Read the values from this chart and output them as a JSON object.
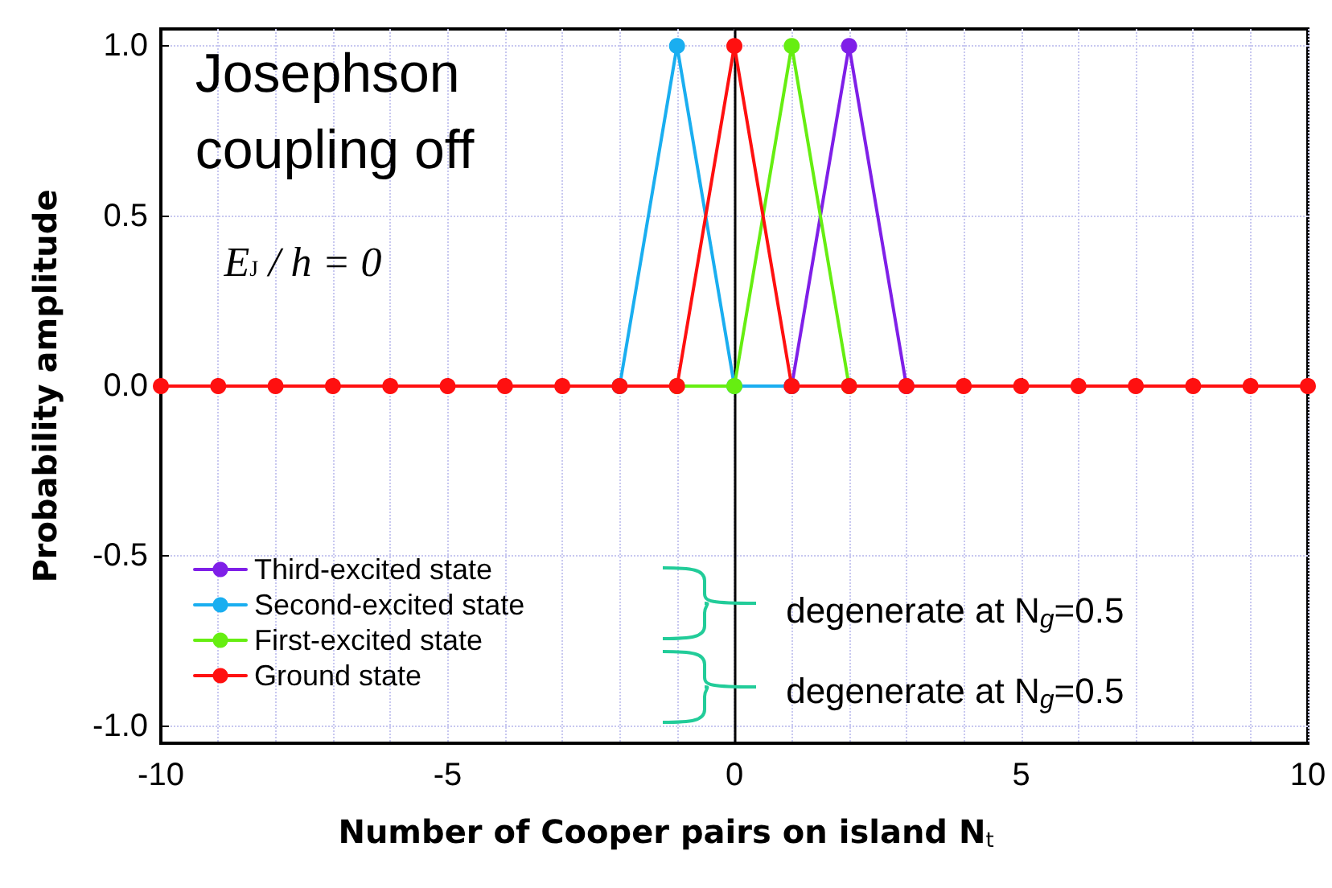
{
  "chart_data": {
    "type": "line",
    "xlabel": "Number of Cooper pairs on island N$_{t}$",
    "ylabel": "Probability amplitude",
    "x": [
      -10,
      -9,
      -8,
      -7,
      -6,
      -5,
      -4,
      -3,
      -2,
      -1,
      0,
      1,
      2,
      3,
      4,
      5,
      6,
      7,
      8,
      9,
      10
    ],
    "series": [
      {
        "name": "Third-excited state",
        "color": "#7f1fe8",
        "values": [
          null,
          null,
          null,
          null,
          null,
          null,
          null,
          null,
          null,
          null,
          null,
          0,
          1,
          0,
          null,
          null,
          null,
          null,
          null,
          null,
          null
        ]
      },
      {
        "name": "Second-excited state",
        "color": "#1aaef0",
        "values": [
          null,
          null,
          null,
          null,
          null,
          null,
          null,
          null,
          0,
          1,
          0,
          0,
          null,
          null,
          null,
          null,
          null,
          null,
          null,
          null,
          null
        ]
      },
      {
        "name": "First-excited state",
        "color": "#66ee11",
        "values": [
          null,
          null,
          null,
          null,
          null,
          null,
          null,
          null,
          null,
          0,
          0,
          1,
          0,
          null,
          null,
          null,
          null,
          null,
          null,
          null,
          null
        ]
      },
      {
        "name": "Ground state",
        "color": "#ff1010",
        "values": [
          0,
          0,
          0,
          0,
          0,
          0,
          0,
          0,
          0,
          0,
          1,
          0,
          0,
          0,
          0,
          0,
          0,
          0,
          0,
          0,
          0
        ]
      }
    ],
    "xlim": [
      -10,
      10
    ],
    "xticks": [
      -10,
      {
        "value": -9,
        "label": null
      },
      {
        "value": -8,
        "label": null
      },
      {
        "value": -7,
        "label": null
      },
      {
        "value": -6,
        "label": null
      },
      -5,
      {
        "value": -4,
        "label": null
      },
      {
        "value": -3,
        "label": null
      },
      {
        "value": -2,
        "label": null
      },
      {
        "value": -1,
        "label": null
      },
      0,
      {
        "value": 1,
        "label": null
      },
      {
        "value": 2,
        "label": null
      },
      {
        "value": 3,
        "label": null
      },
      {
        "value": 4,
        "label": null
      },
      5,
      {
        "value": 6,
        "label": null
      },
      {
        "value": 7,
        "label": null
      },
      {
        "value": 8,
        "label": null
      },
      {
        "value": 9,
        "label": null
      },
      10
    ],
    "ylim": [
      -1.05,
      1.05
    ],
    "yticks": [
      {
        "value": -1,
        "label": "-1.0"
      },
      {
        "value": -0.5,
        "label": "-0.5"
      },
      {
        "value": 0,
        "label": "0.0"
      },
      {
        "value": 0.5,
        "label": "0.5"
      },
      {
        "value": 1,
        "label": "1.0"
      }
    ],
    "ref_lines": [
      {
        "axis": "x",
        "value": 0,
        "color": "#000000"
      }
    ],
    "annotations": [
      "Josephson coupling off",
      "E$_{J}$ / h = 0",
      "degenerate at N$_{g}$=0.5",
      "degenerate at N$_{g}$=0.5"
    ],
    "grid": true,
    "legend": "bottom left",
    "marker": "circle",
    "line_style": "solid"
  }
}
